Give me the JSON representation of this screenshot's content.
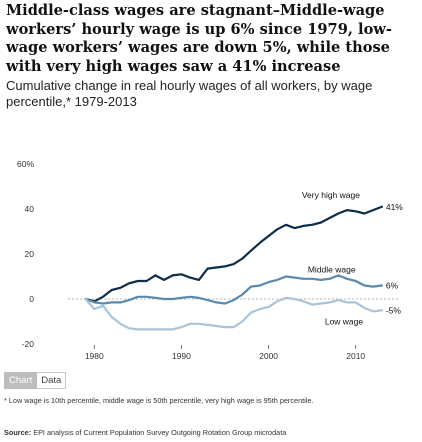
{
  "title": "Middle-class wages are stagnant–Middle-wage workers’ hourly wage is up 6% since 1979, low-wage workers’ wages are down 5%, while those with very high wages saw a 41% increase",
  "subtitle": "Cumulative change in real hourly wages of all workers, by wage percentile,* 1979-2013",
  "tabs": {
    "chart_label": "Chart",
    "data_label": "Data"
  },
  "footnote": "* Low wage is 10th percentile, middle wage is 50th percentile, very high wage is 95th percentile.",
  "source": {
    "label": "Source:",
    "text": " EPI analysis of Current Population Survey Outgoing Rotation Group microdata"
  },
  "chart_data": {
    "type": "line",
    "x": [
      1979,
      1980,
      1981,
      1982,
      1983,
      1984,
      1985,
      1986,
      1987,
      1988,
      1989,
      1990,
      1991,
      1992,
      1993,
      1994,
      1995,
      1996,
      1997,
      1998,
      1999,
      2000,
      2001,
      2002,
      2003,
      2004,
      2005,
      2006,
      2007,
      2008,
      2009,
      2010,
      2011,
      2012,
      2013
    ],
    "xlim": [
      1974,
      2016
    ],
    "ylim": [
      -20,
      60
    ],
    "xticks": [
      "1980",
      "1990",
      "2000",
      "2010"
    ],
    "yticks": [
      "60%",
      "40",
      "20",
      "0",
      "-20"
    ],
    "grid": false,
    "series": [
      {
        "name": "Very high wage",
        "color": "#0d2d48",
        "end_label": "41%",
        "values": [
          0,
          -1,
          1,
          4,
          5,
          7,
          8,
          8,
          10.5,
          8.5,
          10.5,
          11,
          9.5,
          8.5,
          13.5,
          14,
          14.5,
          15.5,
          18,
          21.5,
          25,
          28,
          31,
          33,
          31.5,
          32.5,
          33,
          34,
          36,
          38,
          39.5,
          39,
          38,
          39.5,
          41
        ]
      },
      {
        "name": "Middle wage",
        "color": "#5b89ad",
        "end_label": "6%",
        "values": [
          0,
          -1.5,
          -2,
          -1.5,
          -1.5,
          -0.5,
          1,
          1,
          0.5,
          0,
          0,
          0.5,
          1,
          0.5,
          -0.5,
          -1.5,
          -2,
          -0.5,
          2,
          5.5,
          6,
          7.5,
          8.5,
          10,
          9.5,
          9,
          9,
          8.5,
          9,
          10.5,
          9,
          8,
          6,
          5.5,
          6
        ]
      },
      {
        "name": "Low wage",
        "color": "#a8c4da",
        "end_label": "-5%",
        "values": [
          0,
          -4.5,
          -3,
          -8,
          -11,
          -13,
          -13.5,
          -13.5,
          -13.5,
          -13.5,
          -13.5,
          -12.5,
          -11,
          -11,
          -11.5,
          -12,
          -12.5,
          -12.5,
          -10,
          -6,
          -4.5,
          -3.5,
          -1,
          0.5,
          0,
          -1,
          -2.5,
          -2,
          -1.5,
          -0.5,
          -1.5,
          -1.5,
          -4,
          -5.5,
          -5
        ]
      }
    ]
  }
}
